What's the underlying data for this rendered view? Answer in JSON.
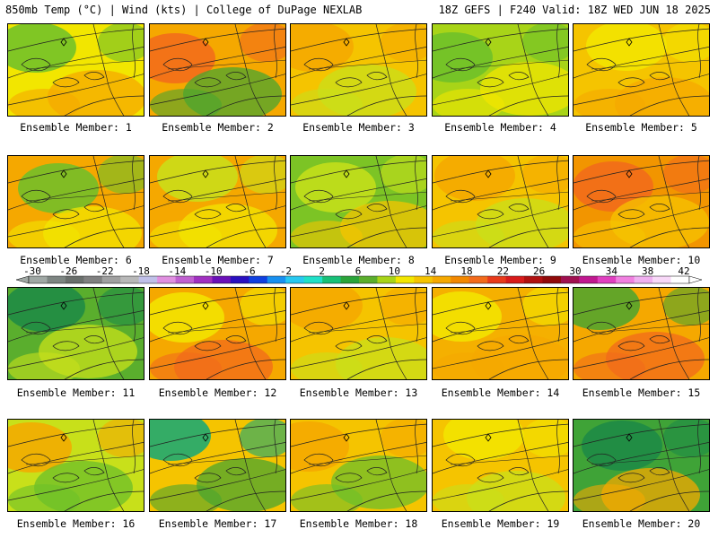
{
  "header": {
    "title_left": "850mb Temp (°C) | Wind (kts) | College of DuPage NEXLAB",
    "title_right": "18Z GEFS | F240 Valid: 18Z WED JUN 18 2025"
  },
  "members": [
    {
      "label": "Ensemble Member: 1",
      "base": "#f2e600",
      "accents": [
        "#6cbf2a",
        "#f5a800"
      ]
    },
    {
      "label": "Ensemble Member: 2",
      "base": "#f5a800",
      "accents": [
        "#f26a1b",
        "#4aa52f"
      ]
    },
    {
      "label": "Ensemble Member: 3",
      "base": "#f5c400",
      "accents": [
        "#f5a800",
        "#c8e01a"
      ]
    },
    {
      "label": "Ensemble Member: 4",
      "base": "#a8d418",
      "accents": [
        "#6cbf2a",
        "#f2e600"
      ]
    },
    {
      "label": "Ensemble Member: 5",
      "base": "#f5c400",
      "accents": [
        "#f2e600",
        "#f5a800"
      ]
    },
    {
      "label": "Ensemble Member: 6",
      "base": "#f5a800",
      "accents": [
        "#6cbf2a",
        "#f2e600"
      ]
    },
    {
      "label": "Ensemble Member: 7",
      "base": "#f5a800",
      "accents": [
        "#c8e01a",
        "#f2e600"
      ]
    },
    {
      "label": "Ensemble Member: 8",
      "base": "#7cc425",
      "accents": [
        "#c8e01a",
        "#f5c400"
      ]
    },
    {
      "label": "Ensemble Member: 9",
      "base": "#f5c400",
      "accents": [
        "#f5a800",
        "#c8e01a"
      ]
    },
    {
      "label": "Ensemble Member: 10",
      "base": "#f29500",
      "accents": [
        "#f26a1b",
        "#f5c400"
      ]
    },
    {
      "label": "Ensemble Member: 11",
      "base": "#5aae2d",
      "accents": [
        "#1c8a46",
        "#c8e01a"
      ]
    },
    {
      "label": "Ensemble Member: 12",
      "base": "#f5a800",
      "accents": [
        "#f2e600",
        "#f26a1b"
      ]
    },
    {
      "label": "Ensemble Member: 13",
      "base": "#f5c400",
      "accents": [
        "#f5a800",
        "#c8e01a"
      ]
    },
    {
      "label": "Ensemble Member: 14",
      "base": "#f5b000",
      "accents": [
        "#f2e600",
        "#f5a800"
      ]
    },
    {
      "label": "Ensemble Member: 15",
      "base": "#f5a800",
      "accents": [
        "#4aa52f",
        "#f26a1b"
      ]
    },
    {
      "label": "Ensemble Member: 16",
      "base": "#c8e01a",
      "accents": [
        "#f5a800",
        "#6cbf2a"
      ]
    },
    {
      "label": "Ensemble Member: 17",
      "base": "#f5c400",
      "accents": [
        "#12a878",
        "#4aa52f"
      ]
    },
    {
      "label": "Ensemble Member: 18",
      "base": "#f5c400",
      "accents": [
        "#f5a800",
        "#6cbf2a"
      ]
    },
    {
      "label": "Ensemble Member: 19",
      "base": "#f5c400",
      "accents": [
        "#f2e600",
        "#c8e01a"
      ]
    },
    {
      "label": "Ensemble Member: 20",
      "base": "#3fa337",
      "accents": [
        "#1c8a46",
        "#f5a800"
      ]
    }
  ],
  "colorbar": {
    "ticks": [
      "-30",
      "-26",
      "-22",
      "-18",
      "-14",
      "-10",
      "-6",
      "-2",
      "2",
      "6",
      "10",
      "14",
      "18",
      "22",
      "26",
      "30",
      "34",
      "38",
      "42"
    ],
    "colors": [
      "#9fa7a4",
      "#7d8582",
      "#6a6f6c",
      "#808080",
      "#a0a0a0",
      "#b8b8b8",
      "#c0c0e8",
      "#e090e0",
      "#c060d0",
      "#a030c0",
      "#6a10b8",
      "#2a10c0",
      "#1040e0",
      "#1890f0",
      "#28c8f0",
      "#20e0c8",
      "#18c078",
      "#2aa43a",
      "#5aae2d",
      "#a8d418",
      "#f2e600",
      "#f5c400",
      "#f5a800",
      "#f28800",
      "#f26a1b",
      "#e83a1a",
      "#d81a1a",
      "#b01010",
      "#900a0a",
      "#a01050",
      "#c01890",
      "#e040c0",
      "#f080e0",
      "#f0b0f0",
      "#f8d8f8",
      "#ffffff"
    ]
  }
}
